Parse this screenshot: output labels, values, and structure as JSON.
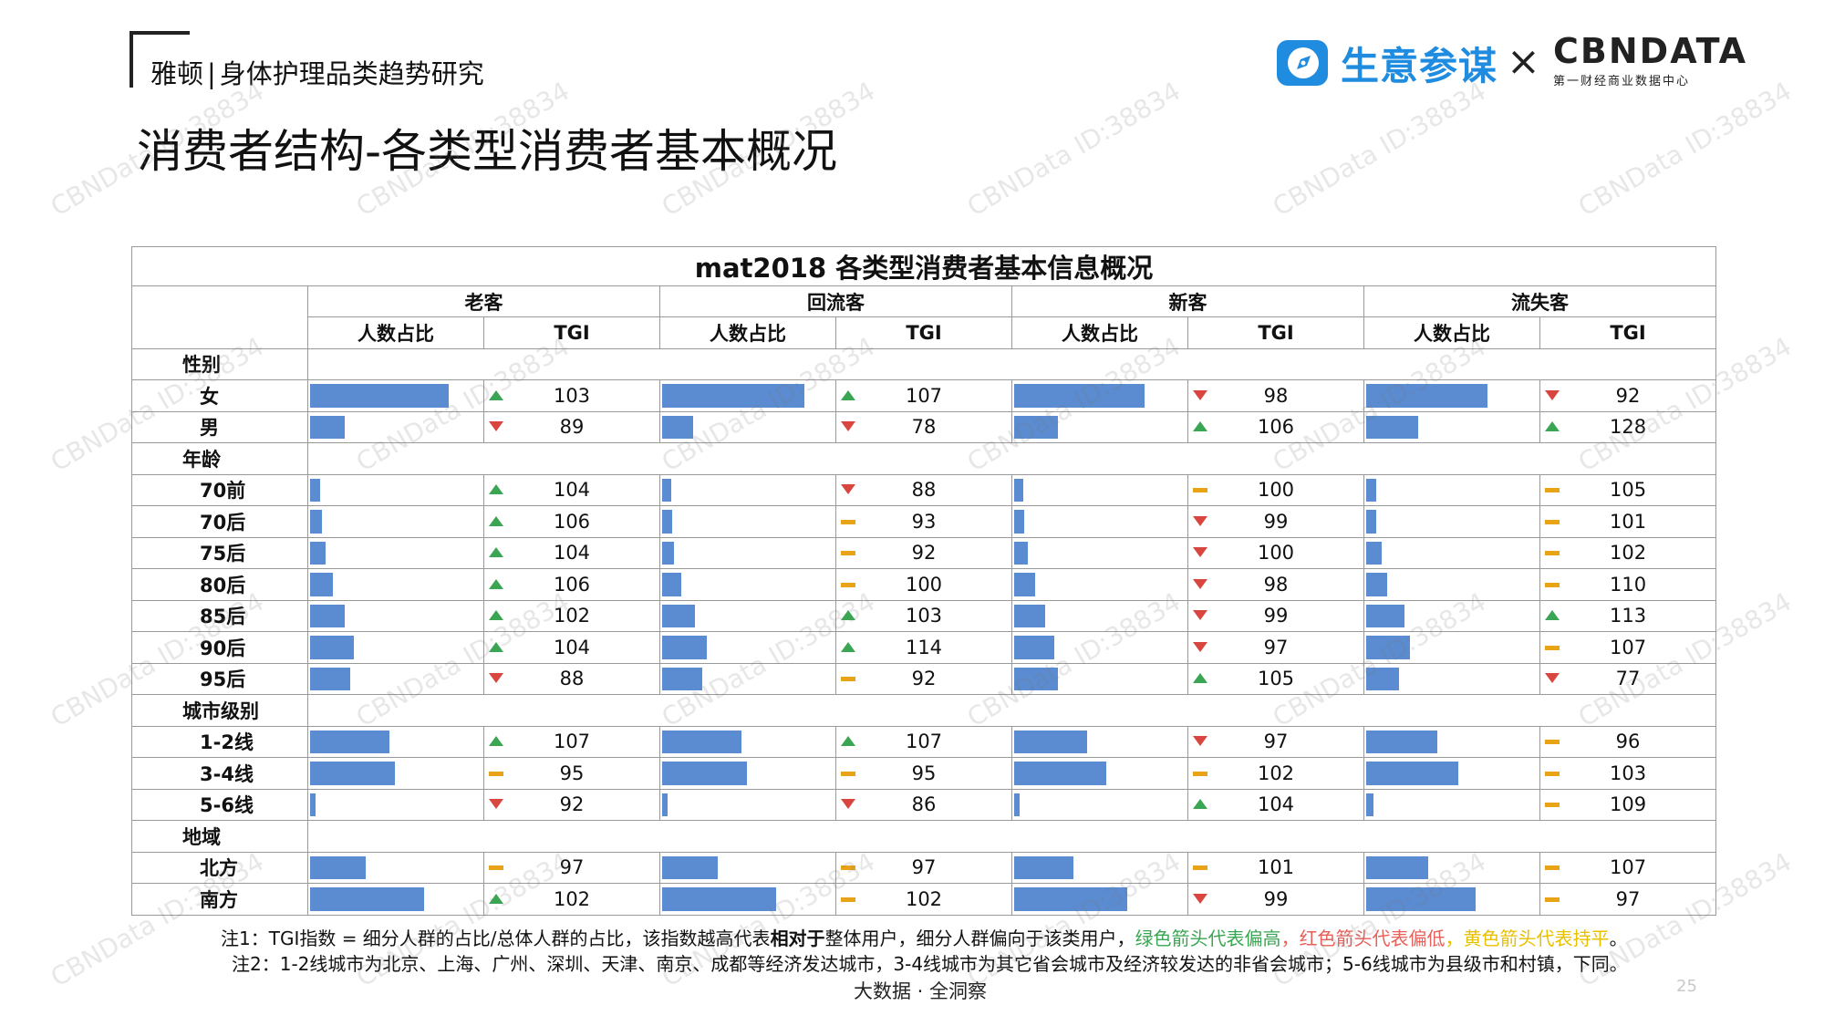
{
  "header": {
    "brand_name": "雅顿",
    "separator": "|",
    "report_name": "身体护理品类趋势研究",
    "page_title": "消费者结构-各类型消费者基本概况"
  },
  "logos": {
    "partner_a": "生意参谋",
    "times": "×",
    "partner_b_main": "CBNDATA",
    "partner_b_sub": "第一财经商业数据中心"
  },
  "watermark_text": "CBNData ID:38834",
  "colors": {
    "bar": "#5b8bd0",
    "up": "#3aa552",
    "down": "#d9463f",
    "flat": "#e8a317"
  },
  "table": {
    "title": "mat2018 各类型消费者基本信息概况",
    "groups": [
      "老客",
      "回流客",
      "新客",
      "流失客"
    ],
    "sub_headers": {
      "share": "人数占比",
      "tgi": "TGI"
    },
    "sections": [
      {
        "category": "性别",
        "rows": [
          {
            "label": "女",
            "cells": [
              {
                "share": 0.8,
                "tgi": "103",
                "dir": "up"
              },
              {
                "share": 0.82,
                "tgi": "107",
                "dir": "up"
              },
              {
                "share": 0.75,
                "tgi": "98",
                "dir": "down"
              },
              {
                "share": 0.7,
                "tgi": "92",
                "dir": "down"
              }
            ]
          },
          {
            "label": "男",
            "cells": [
              {
                "share": 0.2,
                "tgi": "89",
                "dir": "down"
              },
              {
                "share": 0.18,
                "tgi": "78",
                "dir": "down"
              },
              {
                "share": 0.25,
                "tgi": "106",
                "dir": "up"
              },
              {
                "share": 0.3,
                "tgi": "128",
                "dir": "up"
              }
            ]
          }
        ]
      },
      {
        "category": "年龄",
        "rows": [
          {
            "label": "70前",
            "cells": [
              {
                "share": 0.06,
                "tgi": "104",
                "dir": "up"
              },
              {
                "share": 0.05,
                "tgi": "88",
                "dir": "down"
              },
              {
                "share": 0.05,
                "tgi": "100",
                "dir": "flat"
              },
              {
                "share": 0.06,
                "tgi": "105",
                "dir": "flat"
              }
            ]
          },
          {
            "label": "70后",
            "cells": [
              {
                "share": 0.07,
                "tgi": "106",
                "dir": "up"
              },
              {
                "share": 0.06,
                "tgi": "93",
                "dir": "flat"
              },
              {
                "share": 0.06,
                "tgi": "99",
                "dir": "down"
              },
              {
                "share": 0.06,
                "tgi": "101",
                "dir": "flat"
              }
            ]
          },
          {
            "label": "75后",
            "cells": [
              {
                "share": 0.09,
                "tgi": "104",
                "dir": "up"
              },
              {
                "share": 0.07,
                "tgi": "92",
                "dir": "flat"
              },
              {
                "share": 0.08,
                "tgi": "100",
                "dir": "down"
              },
              {
                "share": 0.09,
                "tgi": "102",
                "dir": "flat"
              }
            ]
          },
          {
            "label": "80后",
            "cells": [
              {
                "share": 0.13,
                "tgi": "106",
                "dir": "up"
              },
              {
                "share": 0.11,
                "tgi": "100",
                "dir": "flat"
              },
              {
                "share": 0.12,
                "tgi": "98",
                "dir": "down"
              },
              {
                "share": 0.12,
                "tgi": "110",
                "dir": "flat"
              }
            ]
          },
          {
            "label": "85后",
            "cells": [
              {
                "share": 0.2,
                "tgi": "102",
                "dir": "up"
              },
              {
                "share": 0.19,
                "tgi": "103",
                "dir": "up"
              },
              {
                "share": 0.18,
                "tgi": "99",
                "dir": "down"
              },
              {
                "share": 0.22,
                "tgi": "113",
                "dir": "up"
              }
            ]
          },
          {
            "label": "90后",
            "cells": [
              {
                "share": 0.25,
                "tgi": "104",
                "dir": "up"
              },
              {
                "share": 0.26,
                "tgi": "114",
                "dir": "up"
              },
              {
                "share": 0.23,
                "tgi": "97",
                "dir": "down"
              },
              {
                "share": 0.25,
                "tgi": "107",
                "dir": "flat"
              }
            ]
          },
          {
            "label": "95后",
            "cells": [
              {
                "share": 0.23,
                "tgi": "88",
                "dir": "down"
              },
              {
                "share": 0.23,
                "tgi": "92",
                "dir": "flat"
              },
              {
                "share": 0.25,
                "tgi": "105",
                "dir": "up"
              },
              {
                "share": 0.19,
                "tgi": "77",
                "dir": "down"
              }
            ]
          }
        ]
      },
      {
        "category": "城市级别",
        "rows": [
          {
            "label": "1-2线",
            "cells": [
              {
                "share": 0.46,
                "tgi": "107",
                "dir": "up"
              },
              {
                "share": 0.46,
                "tgi": "107",
                "dir": "up"
              },
              {
                "share": 0.42,
                "tgi": "97",
                "dir": "down"
              },
              {
                "share": 0.41,
                "tgi": "96",
                "dir": "flat"
              }
            ]
          },
          {
            "label": "3-4线",
            "cells": [
              {
                "share": 0.49,
                "tgi": "95",
                "dir": "flat"
              },
              {
                "share": 0.49,
                "tgi": "95",
                "dir": "flat"
              },
              {
                "share": 0.53,
                "tgi": "102",
                "dir": "flat"
              },
              {
                "share": 0.53,
                "tgi": "103",
                "dir": "flat"
              }
            ]
          },
          {
            "label": "5-6线",
            "cells": [
              {
                "share": 0.03,
                "tgi": "92",
                "dir": "down"
              },
              {
                "share": 0.03,
                "tgi": "86",
                "dir": "down"
              },
              {
                "share": 0.03,
                "tgi": "104",
                "dir": "up"
              },
              {
                "share": 0.04,
                "tgi": "109",
                "dir": "flat"
              }
            ]
          }
        ]
      },
      {
        "category": "地域",
        "rows": [
          {
            "label": "北方",
            "cells": [
              {
                "share": 0.32,
                "tgi": "97",
                "dir": "flat"
              },
              {
                "share": 0.32,
                "tgi": "97",
                "dir": "flat"
              },
              {
                "share": 0.34,
                "tgi": "101",
                "dir": "flat"
              },
              {
                "share": 0.36,
                "tgi": "107",
                "dir": "flat"
              }
            ]
          },
          {
            "label": "南方",
            "cells": [
              {
                "share": 0.66,
                "tgi": "102",
                "dir": "up"
              },
              {
                "share": 0.66,
                "tgi": "102",
                "dir": "flat"
              },
              {
                "share": 0.65,
                "tgi": "99",
                "dir": "down"
              },
              {
                "share": 0.63,
                "tgi": "97",
                "dir": "flat"
              }
            ]
          }
        ]
      }
    ]
  },
  "notes": {
    "note1_prefix": "注1：TGI指数 = 细分人群的占比/总体人群的占比，该指数越高代表",
    "note1_bold": "相对于",
    "note1_mid": "整体用户，细分人群偏向于该类用户，",
    "note1_green": "绿色箭头代表偏高",
    "note1_sep": "，",
    "note1_red": "红色箭头代表偏低",
    "note1_sep2": "，",
    "note1_yellow": "黄色箭头代表持平",
    "note1_end": "。",
    "note2": "注2：1-2线城市为北京、上海、广州、深圳、天津、南京、成都等经济发达城市，3-4线城市为其它省会城市及经济较发达的非省会城市；5-6线城市为县级市和村镇，下同。"
  },
  "footer": {
    "text": "大数据 · 全洞察",
    "page_number": "25"
  }
}
